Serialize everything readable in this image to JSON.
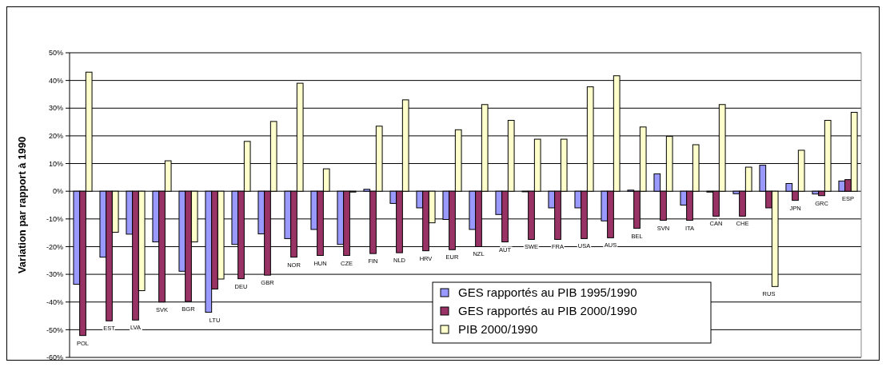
{
  "chart_data": {
    "type": "bar",
    "ylabel": "Variation par rapport à 1990",
    "categories": [
      "POL",
      "EST",
      "LVA",
      "SVK",
      "BGR",
      "LTU",
      "DEU",
      "GBR",
      "NOR",
      "HUN",
      "CZE",
      "FIN",
      "NLD",
      "HRV",
      "EUR",
      "NZL",
      "AUT",
      "SWE",
      "FRA",
      "USA",
      "AUS",
      "BEL",
      "SVN",
      "ITA",
      "CAN",
      "CHE",
      "RUS",
      "JPN",
      "GRC",
      "ESP"
    ],
    "series": [
      {
        "name": "GES rapportés au PIB 1995/1990",
        "color": "#9999ff",
        "values": [
          -33.6,
          -23.8,
          -15.5,
          -18.3,
          -28.9,
          -43.7,
          -19.2,
          -15.4,
          -17.1,
          -13.8,
          -19.2,
          0.7,
          -4.4,
          -6,
          -10.2,
          -13.8,
          -8.4,
          -0.2,
          -6,
          -6,
          -10.7,
          0.4,
          6.3,
          -5,
          -0.3,
          -0.9,
          9.4,
          2.8,
          -1,
          3.7
        ]
      },
      {
        "name": "GES rapportés au PIB 2000/1990",
        "color": "#993366",
        "values": [
          -52.1,
          -46.8,
          -46.5,
          -40,
          -39.8,
          -35.3,
          -31.6,
          -30.3,
          -23.8,
          -23.2,
          -23.2,
          -22.5,
          -22.2,
          -21.5,
          -21.1,
          -20,
          -18.3,
          -17.4,
          -17.4,
          -17.1,
          -16.8,
          -13.4,
          -10.5,
          -10.5,
          -9,
          -9,
          -6,
          -3.3,
          -1.6,
          4.2
        ]
      },
      {
        "name": "PIB 2000/1990",
        "color": "#ffffcc",
        "values": [
          43,
          -14.8,
          -35.9,
          11,
          -18.3,
          -31.7,
          18,
          25.2,
          39,
          8.1,
          -0.3,
          23.5,
          33,
          -11.4,
          22.2,
          31.3,
          25.6,
          18.8,
          18.8,
          37.7,
          41.7,
          23.2,
          19.8,
          16.8,
          31.3,
          8.7,
          -34.4,
          14.8,
          25.6,
          28.5
        ]
      }
    ],
    "ylim": [
      -60,
      50
    ],
    "yticks": [
      {
        "value": -60,
        "label": "-60%"
      },
      {
        "value": -50,
        "label": "-50%"
      },
      {
        "value": -40,
        "label": "-40%"
      },
      {
        "value": -30,
        "label": "-30%"
      },
      {
        "value": -20,
        "label": "-20%"
      },
      {
        "value": -10,
        "label": "-10%"
      },
      {
        "value": 0,
        "label": "0%"
      },
      {
        "value": 10,
        "label": "10%"
      },
      {
        "value": 20,
        "label": "20%"
      },
      {
        "value": 30,
        "label": "30%"
      },
      {
        "value": 40,
        "label": "40%"
      },
      {
        "value": 50,
        "label": "50%"
      }
    ],
    "grid": "y",
    "legend": "bottom right"
  }
}
